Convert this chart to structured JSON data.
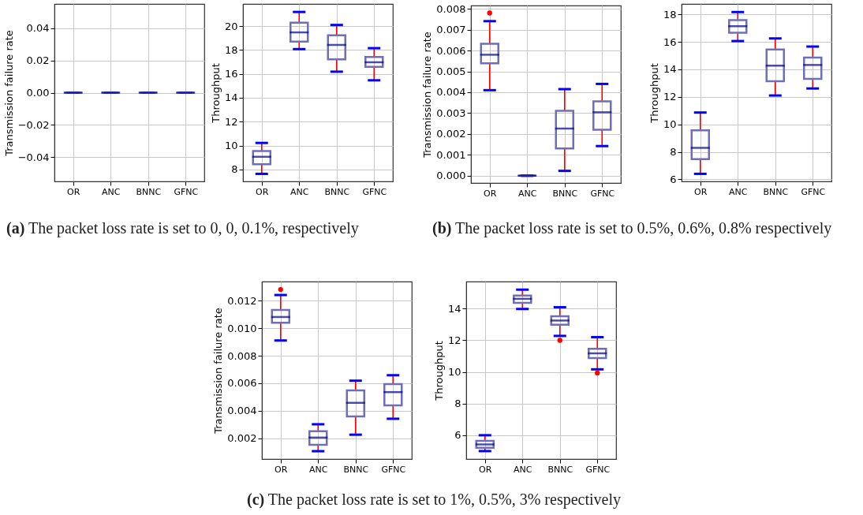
{
  "chart_data": [
    {
      "type": "box",
      "categories": [
        "OR",
        "ANC",
        "BNNC",
        "GFNC"
      ],
      "ylabel": "Transmission failure rate",
      "ylim": [
        -0.055,
        0.055
      ],
      "yticks": [
        {
          "value": -0.04,
          "label": "−0.04"
        },
        {
          "value": -0.02,
          "label": "−0.02"
        },
        {
          "value": 0,
          "label": "0.00"
        },
        {
          "value": 0.02,
          "label": "0.02"
        },
        {
          "value": 0.04,
          "label": "0.04"
        }
      ],
      "grid": true,
      "boxes": [
        {
          "low": 0,
          "q1": 0,
          "median": 0,
          "q3": 0,
          "high": 0
        },
        {
          "low": 0,
          "q1": 0,
          "median": 0,
          "q3": 0,
          "high": 0
        },
        {
          "low": 0,
          "q1": 0,
          "median": 0,
          "q3": 0,
          "high": 0
        },
        {
          "low": 0,
          "q1": 0,
          "median": 0,
          "q3": 0,
          "high": 0
        }
      ],
      "annotations": [
        "(a) The packet loss rate is set to 0, 0, 0.1%, respectively"
      ]
    },
    {
      "type": "box",
      "categories": [
        "OR",
        "ANC",
        "BNNC",
        "GFNC"
      ],
      "ylabel": "Throughput",
      "ylim": [
        7,
        21.85
      ],
      "yticks": [
        8,
        10,
        12,
        14,
        16,
        18,
        20
      ],
      "grid": true,
      "boxes": [
        {
          "low": 7.63,
          "q1": 8.44,
          "median": 9.06,
          "q3": 9.54,
          "high": 10.22
        },
        {
          "low": 18.07,
          "q1": 18.7,
          "median": 19.47,
          "q3": 20.29,
          "high": 21.18
        },
        {
          "low": 16.18,
          "q1": 17.21,
          "median": 18.42,
          "q3": 19.23,
          "high": 20.09
        },
        {
          "low": 15.46,
          "q1": 16.58,
          "median": 16.97,
          "q3": 17.41,
          "high": 18.15
        }
      ]
    },
    {
      "type": "box",
      "categories": [
        "OR",
        "ANC",
        "BNNC",
        "GFNC"
      ],
      "ylabel": "Transmission failure rate",
      "ylim": [
        -0.00035,
        0.00816
      ],
      "yticks": [
        {
          "value": 0,
          "label": "0.000"
        },
        {
          "value": 0.001,
          "label": "0.001"
        },
        {
          "value": 0.002,
          "label": "0.002"
        },
        {
          "value": 0.003,
          "label": "0.003"
        },
        {
          "value": 0.004,
          "label": "0.004"
        },
        {
          "value": 0.005,
          "label": "0.005"
        },
        {
          "value": 0.006,
          "label": "0.006"
        },
        {
          "value": 0.007,
          "label": "0.007"
        },
        {
          "value": 0.008,
          "label": "0.008"
        }
      ],
      "grid": true,
      "boxes": [
        {
          "low": 0.0041,
          "q1": 0.00539,
          "median": 0.0058,
          "q3": 0.00633,
          "high": 0.00741,
          "outliers": [
            0.0078
          ]
        },
        {
          "low": 0,
          "q1": 0,
          "median": 0,
          "q3": 0,
          "high": 0
        },
        {
          "low": 0.00023,
          "q1": 0.0013,
          "median": 0.00226,
          "q3": 0.00311,
          "high": 0.00415
        },
        {
          "low": 0.00142,
          "q1": 0.0022,
          "median": 0.00304,
          "q3": 0.00356,
          "high": 0.0044
        }
      ],
      "annotations": [
        "(b) The packet loss rate is set to 0.5%, 0.6%, 0.8% respectively"
      ]
    },
    {
      "type": "box",
      "categories": [
        "OR",
        "ANC",
        "BNNC",
        "GFNC"
      ],
      "ylabel": "Throughput",
      "ylim": [
        5.85,
        18.76
      ],
      "yticks": [
        6,
        8,
        10,
        12,
        14,
        16,
        18
      ],
      "grid": true,
      "boxes": [
        {
          "low": 6.4,
          "q1": 7.47,
          "median": 8.29,
          "q3": 9.56,
          "high": 10.86
        },
        {
          "low": 16.06,
          "q1": 16.67,
          "median": 17.14,
          "q3": 17.58,
          "high": 18.17
        },
        {
          "low": 12.1,
          "q1": 13.14,
          "median": 14.27,
          "q3": 15.45,
          "high": 16.25
        },
        {
          "low": 12.61,
          "q1": 13.31,
          "median": 14.32,
          "q3": 14.86,
          "high": 15.66
        }
      ]
    },
    {
      "type": "box",
      "categories": [
        "OR",
        "ANC",
        "BNNC",
        "GFNC"
      ],
      "ylabel": "Transmission failure rate",
      "ylim": [
        0.00048,
        0.0134
      ],
      "yticks": [
        {
          "value": 0.002,
          "label": "0.002"
        },
        {
          "value": 0.004,
          "label": "0.004"
        },
        {
          "value": 0.006,
          "label": "0.006"
        },
        {
          "value": 0.008,
          "label": "0.008"
        },
        {
          "value": 0.01,
          "label": "0.010"
        },
        {
          "value": 0.012,
          "label": "0.012"
        }
      ],
      "grid": true,
      "boxes": [
        {
          "low": 0.00911,
          "q1": 0.0104,
          "median": 0.01082,
          "q3": 0.01133,
          "high": 0.01242,
          "outliers": [
            0.01282
          ]
        },
        {
          "low": 0.00105,
          "q1": 0.00151,
          "median": 0.00204,
          "q3": 0.00251,
          "high": 0.00301
        },
        {
          "low": 0.00225,
          "q1": 0.00358,
          "median": 0.00457,
          "q3": 0.00548,
          "high": 0.00618
        },
        {
          "low": 0.00341,
          "q1": 0.00438,
          "median": 0.00535,
          "q3": 0.00594,
          "high": 0.00658
        }
      ],
      "annotations": [
        "(c) The packet loss rate is set to 1%, 0.5%, 3% respectively"
      ]
    },
    {
      "type": "box",
      "categories": [
        "OR",
        "ANC",
        "BNNC",
        "GFNC"
      ],
      "ylabel": "Throughput",
      "ylim": [
        4.5,
        15.7
      ],
      "yticks": [
        6,
        8,
        10,
        12,
        14
      ],
      "grid": true,
      "boxes": [
        {
          "low": 5.0,
          "q1": 5.21,
          "median": 5.42,
          "q3": 5.64,
          "high": 6.0
        },
        {
          "low": 13.97,
          "q1": 14.36,
          "median": 14.61,
          "q3": 14.82,
          "high": 15.19
        },
        {
          "low": 12.27,
          "q1": 12.98,
          "median": 13.24,
          "q3": 13.51,
          "high": 14.08,
          "outliers": [
            11.99
          ]
        },
        {
          "low": 10.16,
          "q1": 10.87,
          "median": 11.17,
          "q3": 11.46,
          "high": 12.19,
          "outliers": [
            9.93
          ]
        }
      ]
    }
  ]
}
